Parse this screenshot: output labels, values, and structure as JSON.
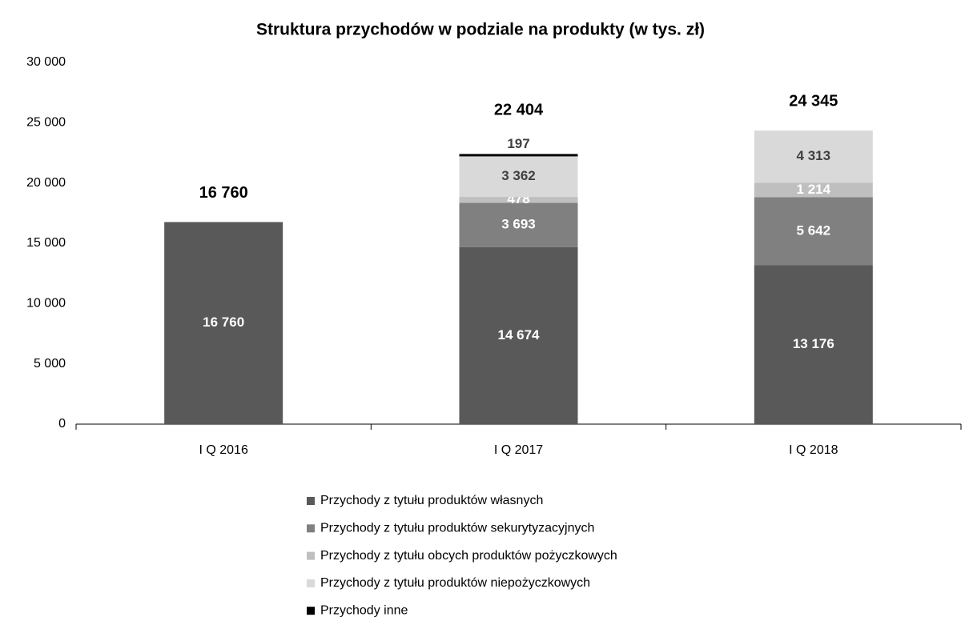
{
  "chart_data": {
    "type": "stacked_bar",
    "title": "Struktura przychodów w podziale na produkty (w tys. zł)",
    "categories": [
      "I Q 2016",
      "I Q 2017",
      "I Q 2018"
    ],
    "series": [
      {
        "name": "Przychody z tytułu produktów własnych",
        "color": "#595959",
        "values": [
          16760,
          14674,
          13176
        ],
        "value_labels": [
          "16 760",
          "14 674",
          "13 176"
        ]
      },
      {
        "name": "Przychody z tytułu produktów sekurytyzacyjnych",
        "color": "#808080",
        "values": [
          null,
          3693,
          5642
        ],
        "value_labels": [
          null,
          "3 693",
          "5 642"
        ]
      },
      {
        "name": "Przychody z tytułu obcych produktów pożyczkowych",
        "color": "#bfbfbf",
        "values": [
          null,
          478,
          1214
        ],
        "value_labels": [
          null,
          "478",
          "1 214"
        ]
      },
      {
        "name": "Przychody z tytułu produktów niepożyczkowych",
        "color": "#d9d9d9",
        "values": [
          null,
          3362,
          4313
        ],
        "value_labels": [
          null,
          "3 362",
          "4 313"
        ]
      },
      {
        "name": "Przychody inne",
        "color": "#000000",
        "values": [
          null,
          197,
          null
        ],
        "value_labels": [
          null,
          "197",
          null
        ]
      }
    ],
    "totals": [
      16760,
      22404,
      24345
    ],
    "total_labels": [
      "16 760",
      "22 404",
      "24 345"
    ],
    "ylim": [
      0,
      30000
    ],
    "yticks": [
      0,
      {
        "value": 5000,
        "label": "5 000"
      },
      {
        "value": 10000,
        "label": "10 000"
      },
      {
        "value": 15000,
        "label": "15 000"
      },
      {
        "value": 20000,
        "label": "20 000"
      },
      {
        "value": 25000,
        "label": "25 000"
      },
      {
        "value": 30000,
        "label": "30 000"
      }
    ],
    "grid": false,
    "legend": "bottom"
  }
}
